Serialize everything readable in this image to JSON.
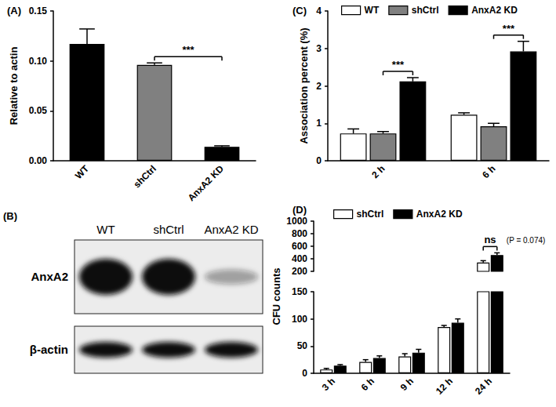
{
  "chart_data": [
    {
      "type": "bar",
      "title": "(A)",
      "y_label": "Relative to actin",
      "categories": [
        "WT",
        "shCtrl",
        "AnxA2 KD"
      ],
      "values": [
        0.117,
        0.096,
        0.014
      ],
      "errors": [
        0.015,
        0.002,
        0.001
      ],
      "colors": [
        "#000000",
        "#808080",
        "#000000"
      ],
      "ylim": [
        0,
        0.15
      ],
      "yticks": [
        {
          "value": 0,
          "label": "0.00"
        },
        {
          "value": 0.05,
          "label": "0.05"
        },
        {
          "value": 0.1,
          "label": "0.10"
        },
        {
          "value": 0.15,
          "label": "0.15"
        }
      ],
      "grid": false,
      "annotations": [
        {
          "text": "***",
          "between": [
            "shCtrl",
            "AnxA2 KD"
          ]
        }
      ]
    },
    {
      "type": "bar",
      "title": "(C)",
      "y_label": "Association percent (%)",
      "categories": [
        "2 h",
        "6 h"
      ],
      "series": [
        {
          "name": "WT",
          "color": "#ffffff",
          "values": [
            0.73,
            1.23
          ],
          "errors": [
            0.12,
            0.05
          ]
        },
        {
          "name": "shCtrl",
          "color": "#808080",
          "values": [
            0.73,
            0.92
          ],
          "errors": [
            0.05,
            0.08
          ]
        },
        {
          "name": "AnxA2 KD",
          "color": "#000000",
          "values": [
            2.12,
            2.92
          ],
          "errors": [
            0.1,
            0.27
          ]
        }
      ],
      "ylim": [
        0,
        4
      ],
      "yticks": [
        0,
        1,
        2,
        3,
        4
      ],
      "grid": false,
      "legend": "top",
      "annotations": [
        {
          "text": "***",
          "category": "2 h",
          "between": [
            "shCtrl",
            "AnxA2 KD"
          ]
        },
        {
          "text": "***",
          "category": "6 h",
          "between": [
            "shCtrl",
            "AnxA2 KD"
          ]
        }
      ]
    },
    {
      "type": "bar",
      "title": "(D)",
      "y_label": "CFU counts",
      "categories": [
        "3 h",
        "6 h",
        "9 h",
        "12 h",
        "24 h"
      ],
      "series": [
        {
          "name": "shCtrl",
          "color": "#ffffff",
          "values": [
            7,
            21,
            31,
            85,
            340
          ],
          "errors": [
            2,
            4,
            5,
            3,
            30
          ]
        },
        {
          "name": "AnxA2 KD",
          "color": "#000000",
          "values": [
            14,
            28,
            38,
            93,
            460
          ],
          "errors": [
            2,
            4,
            6,
            7,
            35
          ]
        }
      ],
      "ylim": [
        0,
        1000
      ],
      "yticks": [
        0,
        50,
        100,
        150,
        200,
        400,
        600,
        800,
        1000
      ],
      "axis_break": [
        150,
        200
      ],
      "grid": false,
      "legend": "top",
      "annotations": [
        {
          "text": "ns",
          "detail": "(P = 0.074)",
          "category": "24 h",
          "between": [
            "shCtrl",
            "AnxA2 KD"
          ]
        }
      ]
    }
  ],
  "blot": {
    "title": "(B)",
    "lanes": [
      "WT",
      "shCtrl",
      "AnxA2 KD"
    ],
    "rows": [
      {
        "label": "AnxA2",
        "intensity": [
          1,
          1,
          0.25
        ]
      },
      {
        "label": "β-actin",
        "intensity": [
          1,
          1,
          1
        ]
      }
    ]
  }
}
